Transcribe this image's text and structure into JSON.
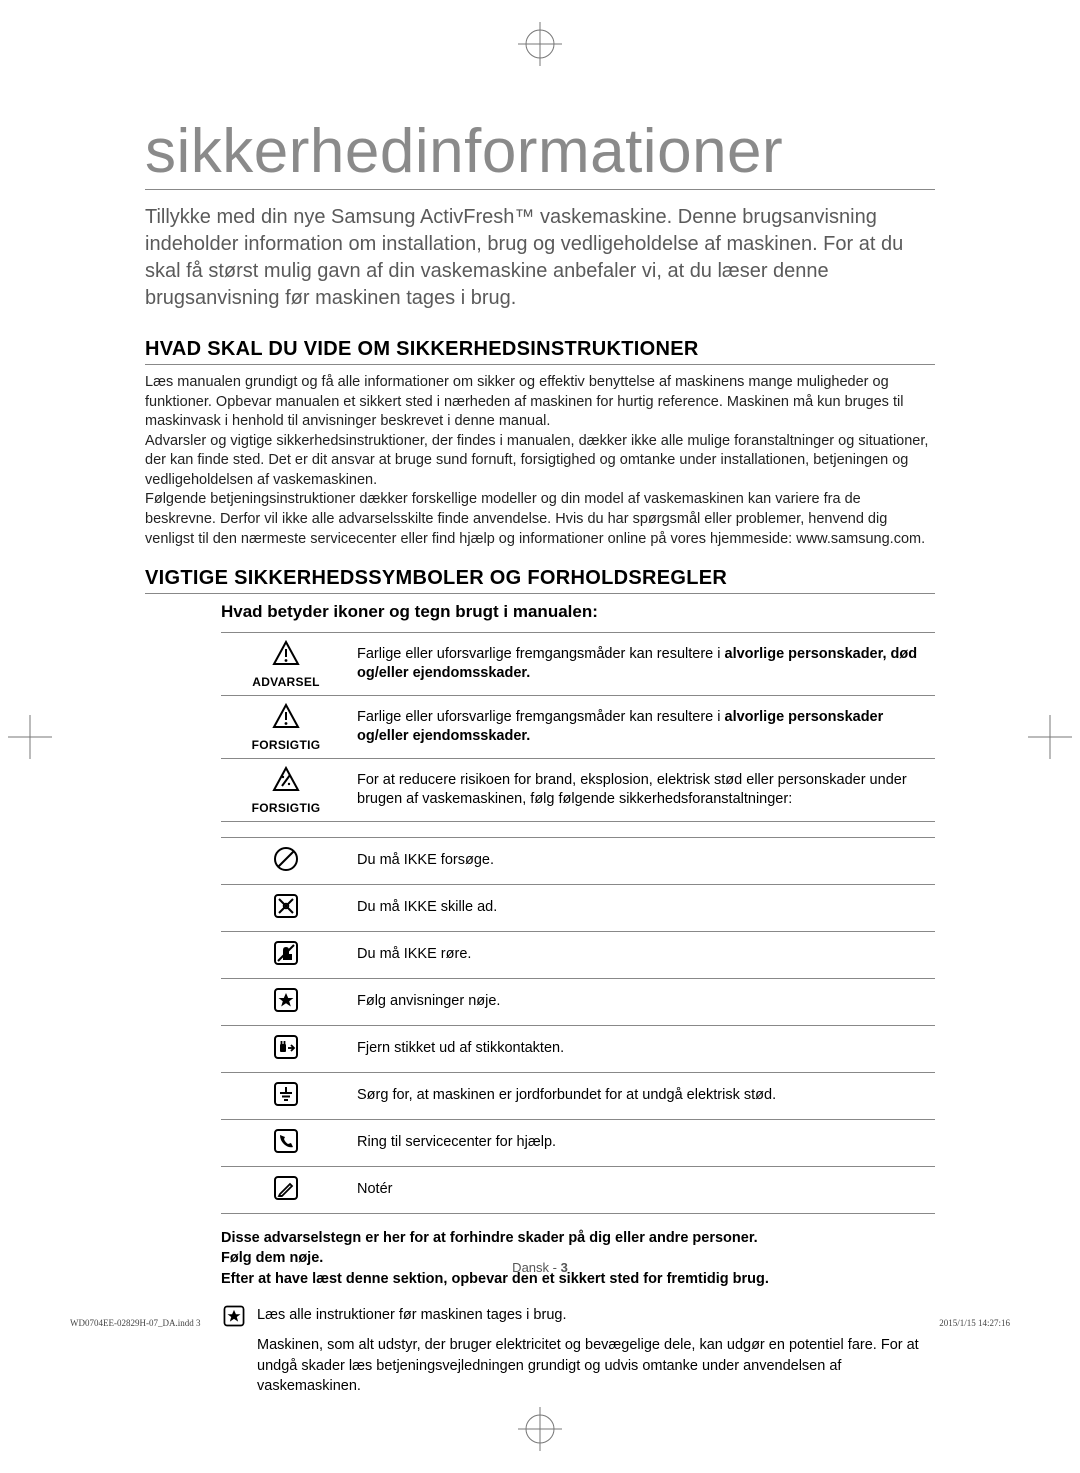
{
  "title": "sikkerhedinformationer",
  "intro": "Tillykke med din nye Samsung ActivFresh™ vaskemaskine. Denne brugsanvisning indeholder information om installation, brug og vedligeholdelse af maskinen. For at du skal få størst mulig gavn af din vaskemaskine anbefaler vi, at du læser denne brugsanvisning før maskinen tages i brug.",
  "section1_heading": "HVAD SKAL DU VIDE OM SIKKERHEDSINSTRUKTIONER",
  "section1_body": "Læs manualen grundigt og få alle informationer om sikker og effektiv benyttelse af maskinens mange muligheder og funktioner. Opbevar manualen et sikkert sted i nærheden af maskinen for hurtig reference. Maskinen må kun bruges til maskinvask i henhold til anvisninger beskrevet i denne manual.\nAdvarsler og vigtige sikkerhedsinstruktioner, der findes i manualen, dækker ikke alle mulige foranstaltninger og situationer, der kan finde sted. Det er dit ansvar at bruge sund fornuft, forsigtighed og  omtanke under installationen, betjeningen og vedligeholdelsen af vaskemaskinen.\nFølgende betjeningsinstruktioner dækker forskellige modeller og din model af vaskemaskinen kan variere fra de beskrevne. Derfor  vil ikke alle advarselsskilte finde anvendelse. Hvis du har spørgsmål eller problemer, henvend dig venligst til den nærmeste servicecenter eller find hjælp og informationer online på vores hjemmeside: www.samsung.com.",
  "section2_heading": "VIGTIGE SIKKERHEDSSYMBOLER OG FORHOLDSREGLER",
  "section2_subhead": "Hvad betyder ikoner og tegn brugt i manualen:",
  "rows_top": [
    {
      "label": "ADVARSEL",
      "icon": "warning-triangle",
      "text_pre": "Farlige eller uforsvarlige fremgangsmåder kan resultere i ",
      "text_bold": "alvorlige personskader, død og/eller ejendomsskader."
    },
    {
      "label": "FORSIGTIG",
      "icon": "warning-triangle",
      "text_pre": "Farlige eller uforsvarlige fremgangsmåder kan resultere i ",
      "text_bold": "alvorlige personskader og/eller ejendomsskader."
    },
    {
      "label": "FORSIGTIG",
      "icon": "caution-triangle",
      "text_plain": "For at reducere risikoen for brand, eksplosion, elektrisk stød eller personskader under brugen af vaskemaskinen, følg følgende sikkerhedsforanstaltninger:"
    }
  ],
  "rows_icons": [
    {
      "icon": "no-circle",
      "text": "Du må IKKE forsøge."
    },
    {
      "icon": "no-disassemble",
      "text": "Du må IKKE skille ad."
    },
    {
      "icon": "no-touch",
      "text": "Du må IKKE røre."
    },
    {
      "icon": "star-box",
      "text": "Følg anvisninger nøje."
    },
    {
      "icon": "unplug",
      "text": "Fjern stikket ud af stikkontakten."
    },
    {
      "icon": "ground",
      "text": "Sørg for, at maskinen er jordforbundet for at undgå elektrisk stød."
    },
    {
      "icon": "phone",
      "text": "Ring til servicecenter for hjælp."
    },
    {
      "icon": "note",
      "text": "Notér"
    }
  ],
  "after_table_line1": "Disse advarselstegn er her for at forhindre skader på dig eller andre personer.",
  "after_table_line2": "Følg dem nøje.",
  "after_table_line3": "Efter at have læst denne sektion, opbevar den et sikkert sted for fremtidig brug.",
  "note_icon": "star-box",
  "note_line1": "Læs alle instruktioner før maskinen tages i brug.",
  "note_line2": "Maskinen, som alt udstyr, der bruger elektricitet og bevægelige dele, kan udgør en potentiel fare. For at undgå skader læs betjeningsvejledningen grundigt og udvis omtanke under anvendelsen af vaskemaskinen.",
  "page_lang": "Dansk - ",
  "page_num": "3",
  "footer_left": "WD0704EE-02829H-07_DA.indd   3",
  "footer_right": "2015/1/15   14:27:16"
}
